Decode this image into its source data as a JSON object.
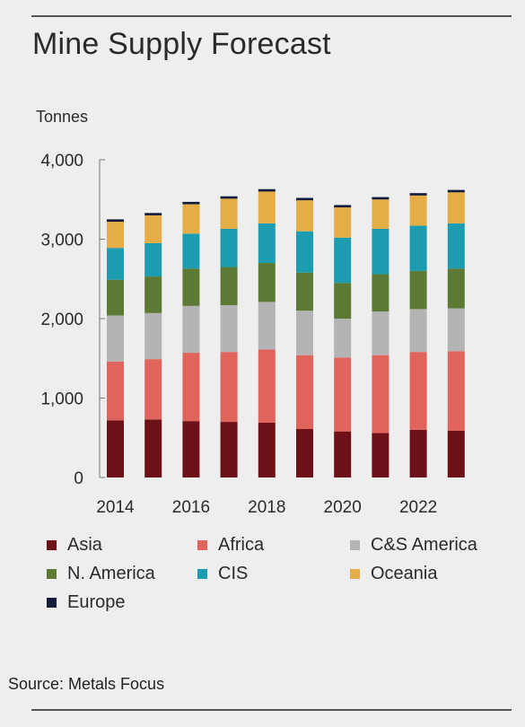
{
  "title": "Mine Supply Forecast",
  "source": "Source: Metals Focus",
  "chart_data": {
    "type": "bar",
    "stacked": true,
    "title": "Mine Supply Forecast",
    "ylabel": "Tonnes",
    "xlabel": "",
    "ylim": [
      0,
      4000
    ],
    "yticks": [
      0,
      1000,
      2000,
      3000,
      4000
    ],
    "ytick_labels": [
      "0",
      "1,000",
      "2,000",
      "3,000",
      "4,000"
    ],
    "categories": [
      "2014",
      "2015",
      "2016",
      "2017",
      "2018",
      "2019",
      "2020",
      "2021",
      "2022",
      "2023"
    ],
    "xtick_labels": [
      "2014",
      "",
      "2016",
      "",
      "2018",
      "",
      "2020",
      "",
      "2022",
      ""
    ],
    "legend_position": "bottom",
    "series": [
      {
        "name": "Asia",
        "color": "#6e1018",
        "values": [
          720,
          730,
          710,
          700,
          690,
          610,
          580,
          560,
          600,
          590
        ]
      },
      {
        "name": "Africa",
        "color": "#e0645c",
        "values": [
          740,
          760,
          860,
          880,
          920,
          930,
          930,
          980,
          980,
          1000
        ]
      },
      {
        "name": "C&S America",
        "color": "#b4b4b4",
        "values": [
          580,
          580,
          590,
          590,
          600,
          560,
          490,
          550,
          540,
          540
        ]
      },
      {
        "name": "N. America",
        "color": "#5c7a33",
        "values": [
          450,
          460,
          470,
          480,
          490,
          480,
          450,
          470,
          480,
          500
        ]
      },
      {
        "name": "CIS",
        "color": "#1c9cb0",
        "values": [
          400,
          420,
          440,
          480,
          500,
          520,
          570,
          570,
          570,
          570
        ]
      },
      {
        "name": "Oceania",
        "color": "#e5ad45",
        "values": [
          330,
          350,
          370,
          380,
          400,
          390,
          380,
          370,
          380,
          390
        ]
      },
      {
        "name": "Europe",
        "color": "#141c3c",
        "values": [
          30,
          30,
          30,
          30,
          30,
          30,
          30,
          30,
          30,
          30
        ]
      }
    ]
  }
}
